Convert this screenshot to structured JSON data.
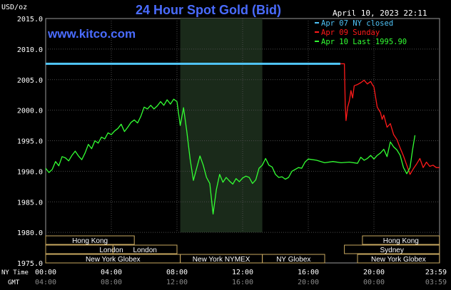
{
  "chart_data": {
    "type": "line",
    "title": "24 Hour Spot Gold (Bid)",
    "source": "www.kitco.com",
    "timestamp": "April 10, 2023 22:11",
    "ylabel": "USD/oz",
    "ylim": [
      1975,
      2015
    ],
    "y_ticks": [
      "2015.0",
      "2010.0",
      "2005.0",
      "2000.0",
      "1995.0",
      "1990.0",
      "1985.0",
      "1980.0",
      "1975.0"
    ],
    "x_tick_labels_ny": [
      "00:00",
      "04:00",
      "08:00",
      "12:00",
      "16:00",
      "20:00",
      "23:59"
    ],
    "x_tick_labels_gmt": [
      "04:00",
      "08:00",
      "12:00",
      "16:00",
      "20:00",
      "00:00",
      "03:59"
    ],
    "ny_time_label": "NY Time",
    "gmt_label": "GMT",
    "legend": [
      {
        "name": "Apr 07 NY closed",
        "color": "#4fc3f7"
      },
      {
        "name": "Apr 09 Sunday",
        "color": "#ff1a1a"
      },
      {
        "name": "Apr 10 Last 1995.90",
        "color": "#33ff33"
      }
    ],
    "series": [
      {
        "name": "Apr 07 NY closed",
        "color": "#4fc3f7",
        "x": [
          0,
          17.95
        ],
        "values": [
          2007.6,
          2007.6
        ]
      },
      {
        "name": "Apr 09 Sunday",
        "color": "#ff1a1a",
        "x": [
          17.95,
          18.2,
          18.25,
          18.3,
          18.4,
          18.5,
          18.6,
          18.7,
          18.8,
          19.0,
          19.2,
          19.4,
          19.6,
          19.8,
          19.9,
          20.0,
          20.2,
          20.4,
          20.5,
          20.6,
          20.8,
          21.0,
          21.2,
          21.4,
          21.6,
          21.8,
          22.0,
          22.2,
          22.4,
          22.6,
          22.8,
          23.0,
          23.2,
          23.4,
          23.6,
          23.8,
          23.99
        ],
        "values": [
          2007.6,
          2007.6,
          2000.8,
          1998.3,
          2000.5,
          2001.5,
          2003.2,
          2002.0,
          2004.0,
          2004.2,
          2004.5,
          2004.9,
          2004.3,
          2004.7,
          2004.2,
          2003.8,
          2000.5,
          1999.6,
          1998.5,
          1999.2,
          1997.2,
          1997.8,
          1996.0,
          1995.2,
          1993.8,
          1992.5,
          1991.0,
          1989.5,
          1990.4,
          1991.2,
          1992.1,
          1990.6,
          1991.5,
          1990.8,
          1991.0,
          1990.6,
          1990.6
        ]
      },
      {
        "name": "Apr 10 Last 1995.90",
        "color": "#33ff33",
        "x": [
          0,
          0.2,
          0.4,
          0.6,
          0.8,
          1.0,
          1.2,
          1.4,
          1.6,
          1.8,
          2.0,
          2.2,
          2.4,
          2.6,
          2.8,
          3.0,
          3.2,
          3.4,
          3.6,
          3.8,
          4.0,
          4.2,
          4.4,
          4.6,
          4.8,
          5.0,
          5.2,
          5.4,
          5.6,
          5.8,
          6.0,
          6.2,
          6.4,
          6.6,
          6.8,
          7.0,
          7.2,
          7.4,
          7.6,
          7.8,
          8.0,
          8.2,
          8.4,
          8.6,
          8.8,
          9.0,
          9.2,
          9.4,
          9.6,
          9.8,
          10.0,
          10.2,
          10.4,
          10.6,
          10.8,
          11.0,
          11.2,
          11.4,
          11.6,
          11.8,
          12.0,
          12.2,
          12.4,
          12.6,
          12.8,
          13.0,
          13.2,
          13.4,
          13.6,
          13.8,
          14.0,
          14.2,
          14.4,
          14.6,
          14.8,
          15.0,
          15.2,
          15.4,
          15.6,
          15.8,
          16.0,
          16.5,
          17.0,
          17.5,
          18.0,
          18.5,
          19.0,
          19.2,
          19.4,
          19.6,
          19.8,
          20.0,
          20.2,
          20.4,
          20.6,
          20.8,
          21.0,
          21.2,
          21.4,
          21.6,
          21.8,
          22.0,
          22.2
        ],
        "values": [
          1990.5,
          1989.8,
          1990.3,
          1991.6,
          1990.9,
          1992.4,
          1992.2,
          1991.7,
          1992.6,
          1993.3,
          1992.5,
          1991.9,
          1993.0,
          1994.4,
          1993.7,
          1995.0,
          1994.6,
          1995.6,
          1995.3,
          1996.3,
          1996.0,
          1996.6,
          1997.0,
          1997.7,
          1996.5,
          1997.2,
          1998.0,
          1998.4,
          1997.9,
          1999.0,
          2000.5,
          2000.2,
          2000.8,
          2000.2,
          2000.7,
          2001.4,
          2000.8,
          2001.7,
          2001.0,
          2001.8,
          2001.4,
          1997.5,
          2000.4,
          1996.5,
          1992.0,
          1988.5,
          1990.5,
          1992.5,
          1991.0,
          1989.0,
          1988.0,
          1983.0,
          1987.0,
          1989.5,
          1988.2,
          1989.0,
          1988.4,
          1987.9,
          1988.8,
          1988.3,
          1988.9,
          1989.2,
          1989.0,
          1988.0,
          1988.6,
          1990.5,
          1991.0,
          1992.1,
          1991.0,
          1990.7,
          1989.5,
          1989.0,
          1989.1,
          1988.7,
          1989.0,
          1990.0,
          1990.3,
          1990.6,
          1990.5,
          1991.5,
          1992.0,
          1991.8,
          1991.4,
          1991.6,
          1991.4,
          1991.5,
          1991.3,
          1992.3,
          1991.8,
          1992.1,
          1992.6,
          1992.0,
          1992.6,
          1993.0,
          1993.6,
          1992.4,
          1994.8,
          1994.0,
          1993.5,
          1992.6,
          1990.6,
          1989.6,
          1990.6
        ]
      }
    ],
    "tail_spike": {
      "x": [
        22.2,
        22.35,
        22.5
      ],
      "values": [
        1990.6,
        1993.5,
        1995.9
      ]
    },
    "shaded_session_hours": [
      8.2,
      13.2
    ],
    "sessions": [
      {
        "name": "Hong Kong",
        "row": 0,
        "start": 0,
        "end": 5.4
      },
      {
        "name": "Hong Kong",
        "row": 0,
        "start": 19.3,
        "end": 23.99
      },
      {
        "name": "London",
        "row": 1,
        "start": 0,
        "end": 8.0,
        "label_at": 1.1
      },
      {
        "name": "London",
        "row": 1,
        "start": 4.1,
        "end": 8.0
      },
      {
        "name": "Sydney",
        "row": 1,
        "start": 18.2,
        "end": 23.99
      },
      {
        "name": "New York Globex",
        "row": 2,
        "start": 0,
        "end": 8.2
      },
      {
        "name": "New York NYMEX",
        "row": 2,
        "start": 8.2,
        "end": 13.2
      },
      {
        "name": "NY Globex",
        "row": 2,
        "start": 13.2,
        "end": 17.0
      },
      {
        "name": "New York Globex",
        "row": 2,
        "start": 19.0,
        "end": 23.99
      }
    ],
    "session_rows_top": [
      "Hong Kong",
      "Hong Kong"
    ],
    "grid": true,
    "legend_position": "top-right"
  }
}
